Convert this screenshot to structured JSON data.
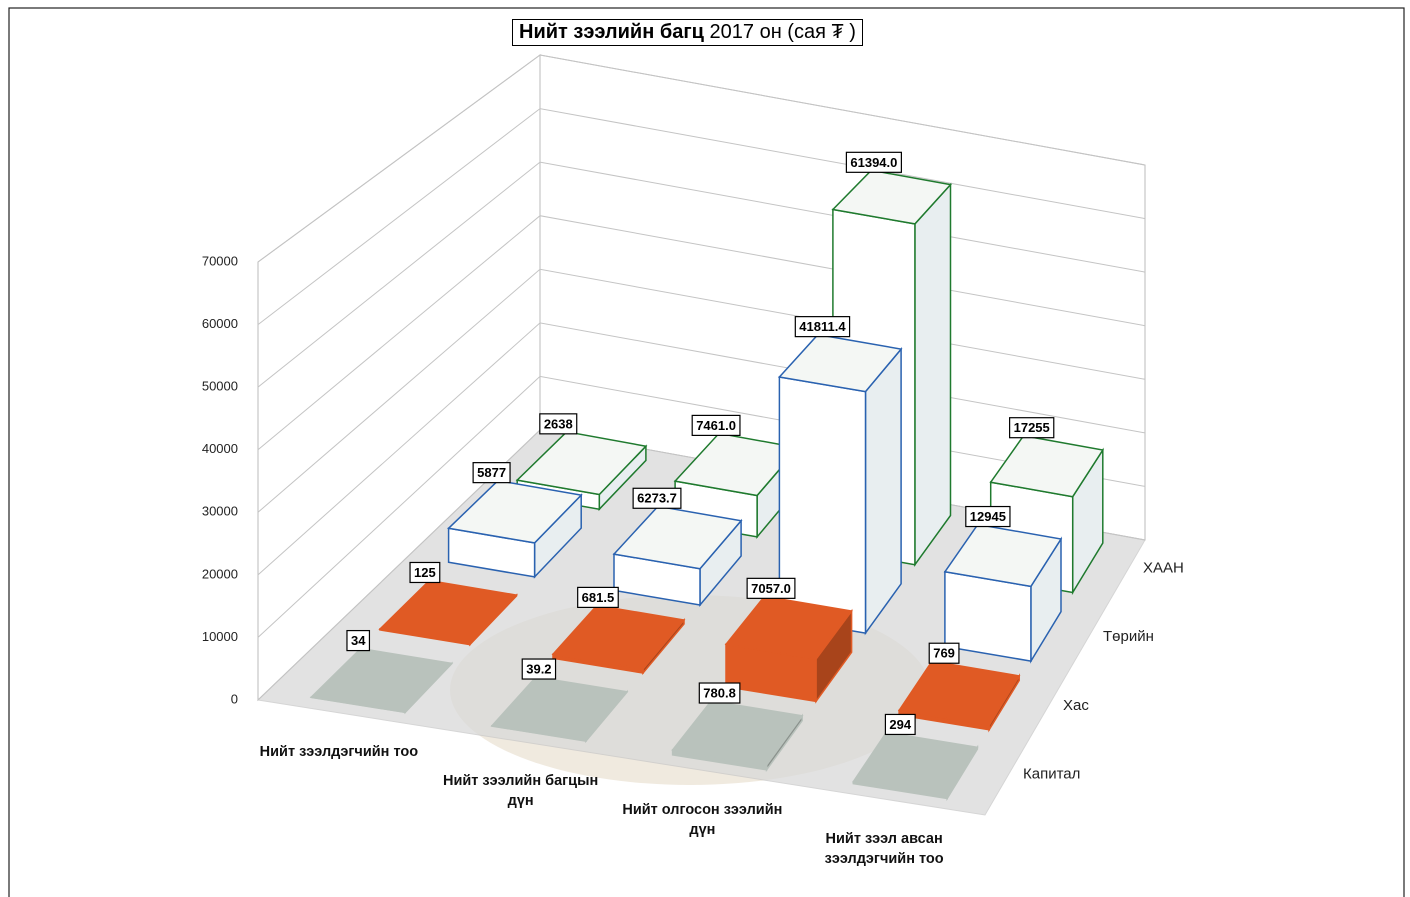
{
  "chart_data": {
    "type": "bar3d",
    "title": "Нийт зээлийн багц",
    "subtitle": "2017 он (сая ₮ )",
    "categories": [
      "Нийт зээлдэгчийн тоо",
      "Нийт зээлийн багцын дүн",
      "Нийт олгосон зээлийн дүн",
      "Нийт зээл авсан зээлдэгчийн тоо"
    ],
    "series": [
      {
        "name": "Капитал",
        "color": "#b9c2bc",
        "values": [
          34,
          39.2,
          780.8,
          294
        ],
        "value_labels": [
          "34",
          "39.2",
          "780.8",
          "294"
        ]
      },
      {
        "name": "Хас",
        "color": "#e05a24",
        "values": [
          125,
          681.5,
          7057,
          769
        ],
        "value_labels": [
          "125",
          "681.5",
          "7057.0",
          "769"
        ]
      },
      {
        "name": "Төрийн",
        "color": "#2a62b0",
        "values": [
          5877,
          6273.7,
          41811.4,
          12945
        ],
        "value_labels": [
          "5877",
          "6273.7",
          "41811.4",
          "12945"
        ]
      },
      {
        "name": "ХААН",
        "color": "#1f7a2e",
        "values": [
          2638,
          7461,
          61394,
          17255
        ],
        "value_labels": [
          "2638",
          "7461.0",
          "61394.0",
          "17255"
        ]
      }
    ],
    "ylim": [
      0,
      70000
    ],
    "yticks": [
      0,
      10000,
      20000,
      30000,
      40000,
      50000,
      60000,
      70000
    ],
    "grid": true
  }
}
